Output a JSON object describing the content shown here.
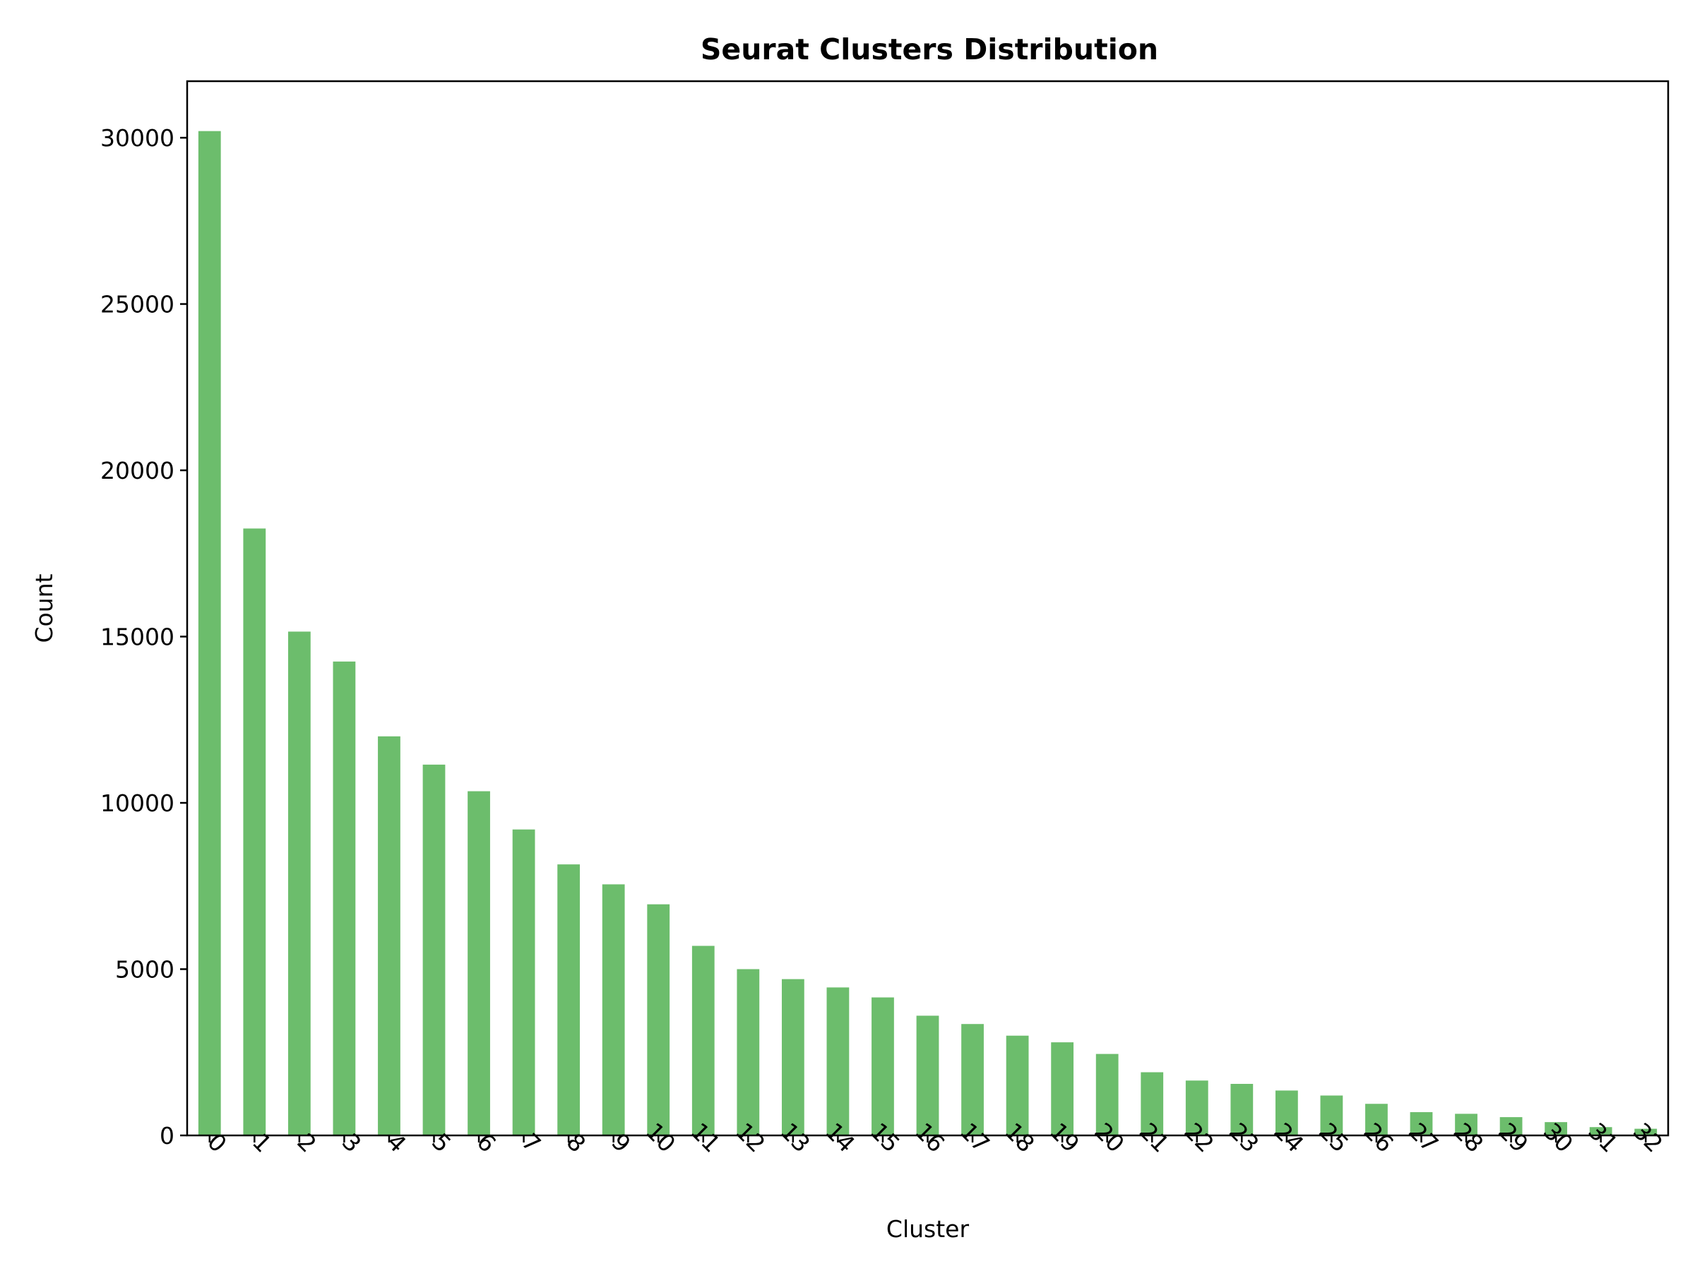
{
  "chart_data": {
    "type": "bar",
    "title": "Seurat Clusters Distribution",
    "xlabel": "Cluster",
    "ylabel": "Count",
    "categories": [
      "0",
      "1",
      "2",
      "3",
      "4",
      "5",
      "6",
      "7",
      "8",
      "9",
      "10",
      "11",
      "12",
      "13",
      "14",
      "15",
      "16",
      "17",
      "18",
      "19",
      "20",
      "21",
      "22",
      "23",
      "24",
      "25",
      "26",
      "27",
      "28",
      "29",
      "30",
      "31",
      "32"
    ],
    "values": [
      30200,
      18250,
      15150,
      14250,
      12000,
      11150,
      10350,
      9200,
      8150,
      7550,
      6950,
      5700,
      5000,
      4700,
      4450,
      4150,
      3600,
      3350,
      3000,
      2800,
      2450,
      1900,
      1650,
      1550,
      1350,
      1200,
      950,
      700,
      650,
      550,
      400,
      250,
      200
    ],
    "yticks": [
      0,
      5000,
      10000,
      15000,
      20000,
      25000,
      30000
    ],
    "ylim": [
      0,
      31700
    ],
    "bar_color": "#6cbd6c",
    "grid": false,
    "xtick_rotation": 45
  }
}
